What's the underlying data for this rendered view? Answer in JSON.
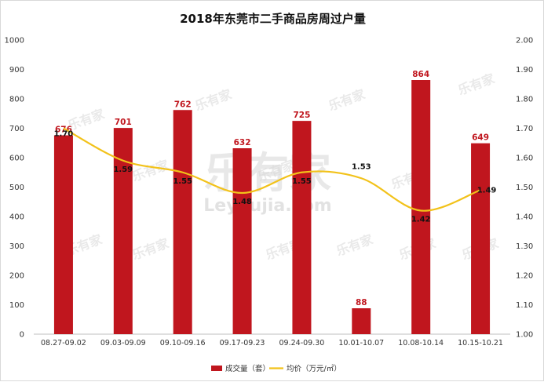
{
  "chart_data": {
    "type": "bar",
    "title": "2018年东莞市二手商品房周过户量",
    "categories": [
      "08.27-09.02",
      "09.03-09.09",
      "09.10-09.16",
      "09.17-09.23",
      "09.24-09.30",
      "10.01-10.07",
      "10.08-10.14",
      "10.15-10.21"
    ],
    "series": [
      {
        "name": "成交量（套）",
        "type": "bar",
        "axis": "left",
        "color": "#c0161e",
        "values": [
          676,
          701,
          762,
          632,
          725,
          88,
          864,
          649
        ],
        "labels": [
          "676",
          "701",
          "762",
          "632",
          "725",
          "88",
          "864",
          "649"
        ]
      },
      {
        "name": "均价（万元/㎡）",
        "type": "line",
        "axis": "right",
        "color": "#f2c21a",
        "values": [
          1.7,
          1.59,
          1.55,
          1.48,
          1.55,
          1.53,
          1.42,
          1.49
        ],
        "labels": [
          "1.70",
          "1.59",
          "1.55",
          "1.48",
          "1.55",
          "1.53",
          "1.42",
          "1.49"
        ]
      }
    ],
    "y_left": {
      "min": 0,
      "max": 1000,
      "ticks": [
        "0",
        "100",
        "200",
        "300",
        "400",
        "500",
        "600",
        "700",
        "800",
        "900",
        "1000"
      ]
    },
    "y_right": {
      "min": 1.0,
      "max": 2.0,
      "ticks": [
        "1.00",
        "1.10",
        "1.20",
        "1.30",
        "1.40",
        "1.50",
        "1.60",
        "1.70",
        "1.80",
        "1.90",
        "2.00"
      ]
    },
    "legend": "bottom",
    "grid": false
  },
  "watermark": {
    "main": "乐有家",
    "sub": "Leyoujia.com",
    "small": "乐有家"
  }
}
